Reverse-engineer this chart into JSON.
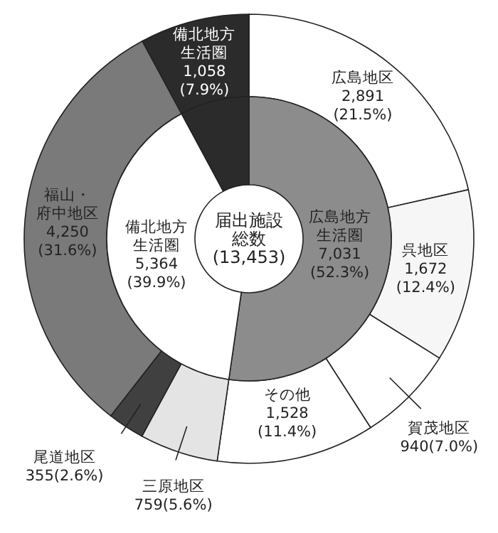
{
  "chart_data": [
    {
      "type": "donut",
      "categories": [
        "広島地区",
        "呉地区",
        "賀茂地区",
        "その他",
        "三原地区",
        "尾道地区",
        "福山・府中地区",
        "備北地方生活圏"
      ],
      "values": [
        2891,
        1672,
        940,
        1528,
        759,
        355,
        4250,
        1058
      ],
      "colors": [
        "#ffffff",
        "#f6f6f6",
        "#ffffff",
        "#ffffff",
        "#e4e4e4",
        "#404040",
        "#7a7a7a",
        "#2b2b2b"
      ],
      "value_labels": [
        "2,891\n(21.5%)",
        "1,672\n(12.4%)",
        "940(7.0%)",
        "1,528\n(11.4%)",
        "759(5.6%)",
        "355(2.6%)",
        "4,250\n(31.6%)",
        "1,058\n(7.9%)"
      ]
    },
    {
      "type": "donut",
      "title": "届出施設総数",
      "subtitle": "(13,453)",
      "categories": [
        "広島地方生活圏",
        "備北地方生活圏",
        null
      ],
      "values": [
        7031,
        5364,
        1058
      ],
      "colors": [
        "#8c8c8c",
        "#ffffff",
        "#2b2b2b"
      ],
      "value_labels": [
        "7,031\n(52.3%)",
        "5,364\n(39.9%)",
        null
      ]
    }
  ]
}
